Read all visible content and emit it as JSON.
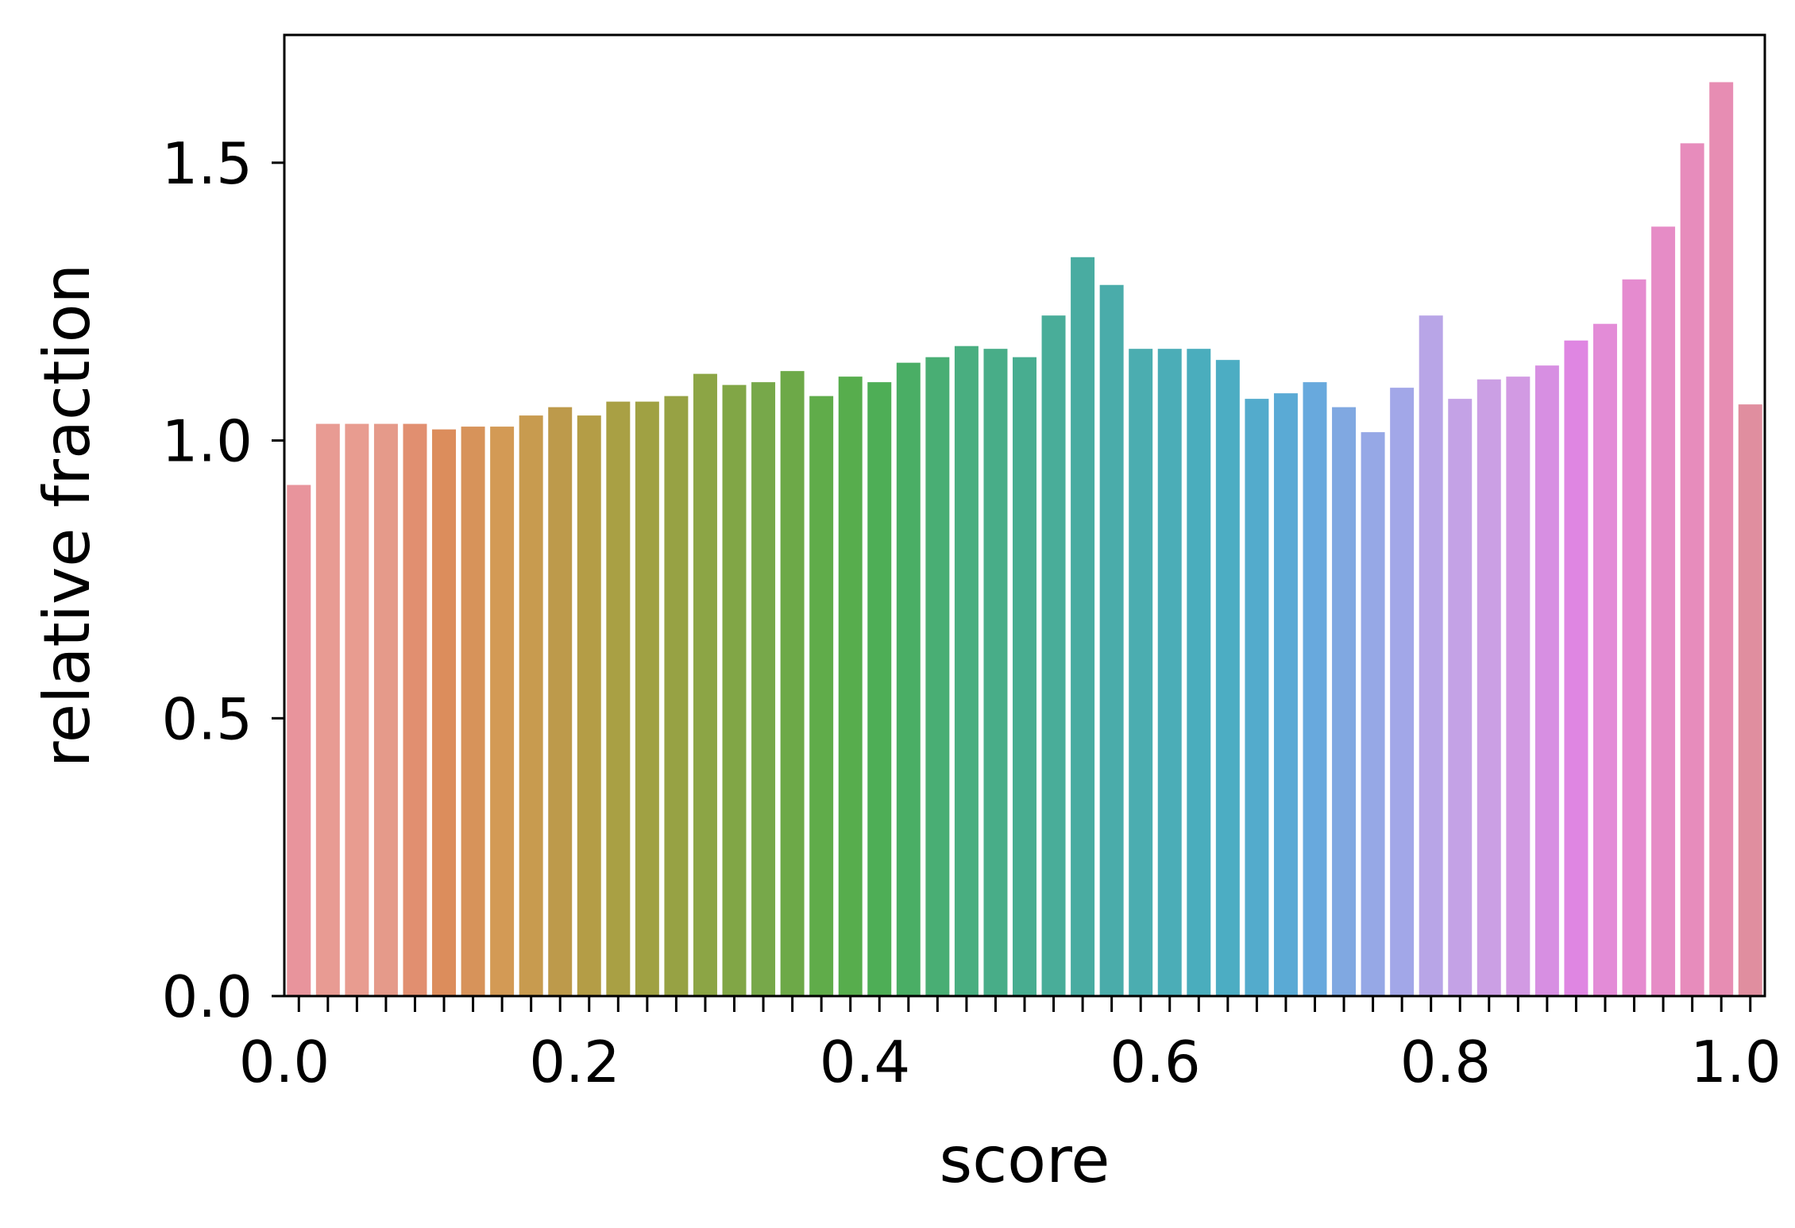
{
  "chart_data": {
    "type": "bar",
    "xlabel": "score",
    "ylabel": "relative fraction",
    "xlim": [
      0.0,
      1.02
    ],
    "ylim": [
      0.0,
      1.73
    ],
    "x_tick_labels": [
      "0.0",
      "0.2",
      "0.4",
      "0.6",
      "0.8",
      "1.0"
    ],
    "x_ticks": [
      0.0,
      0.2,
      0.4,
      0.6,
      0.8,
      1.0
    ],
    "y_tick_labels": [
      "0.0",
      "0.5",
      "1.0",
      "1.5"
    ],
    "y_ticks": [
      0.0,
      0.5,
      1.0,
      1.5
    ],
    "minor_x_tick_step": 0.02,
    "grid": false,
    "legend": "none",
    "values": [
      0.92,
      1.03,
      1.03,
      1.03,
      1.03,
      1.02,
      1.025,
      1.025,
      1.045,
      1.06,
      1.045,
      1.07,
      1.07,
      1.08,
      1.12,
      1.1,
      1.105,
      1.125,
      1.08,
      1.115,
      1.105,
      1.14,
      1.15,
      1.17,
      1.165,
      1.15,
      1.225,
      1.33,
      1.28,
      1.165,
      1.165,
      1.165,
      1.145,
      1.075,
      1.085,
      1.105,
      1.06,
      1.015,
      1.095,
      1.225,
      1.075,
      1.11,
      1.115,
      1.135,
      1.18,
      1.21,
      1.29,
      1.385,
      1.535,
      1.645,
      1.065
    ],
    "colors": [
      "#e8949c",
      "#e89b93",
      "#e89c90",
      "#e59a8a",
      "#e18f70",
      "#dc8d5c",
      "#d7935a",
      "#d39a55",
      "#c89b4f",
      "#bd9a4b",
      "#b49d46",
      "#a9a044",
      "#a0a143",
      "#97a244",
      "#8ca545",
      "#81a646",
      "#77a84a",
      "#6da948",
      "#60ac4a",
      "#57ad4d",
      "#4eae56",
      "#4aae65",
      "#49ae74",
      "#49ae80",
      "#48ad88",
      "#48ad90",
      "#49ad99",
      "#49aca1",
      "#4aacaa",
      "#4badb0",
      "#4badb7",
      "#4aadbd",
      "#4cadc3",
      "#53abcc",
      "#5aaad5",
      "#68a9dd",
      "#80a8e1",
      "#96a8e6",
      "#a2a7e8",
      "#b8a5e7",
      "#c4a2e6",
      "#cb9fe4",
      "#d29ae3",
      "#d78fe2",
      "#df86e2",
      "#e38cd7",
      "#e58bcf",
      "#e68cc6",
      "#e78cbc",
      "#e78db3",
      "#e08e9f"
    ]
  }
}
